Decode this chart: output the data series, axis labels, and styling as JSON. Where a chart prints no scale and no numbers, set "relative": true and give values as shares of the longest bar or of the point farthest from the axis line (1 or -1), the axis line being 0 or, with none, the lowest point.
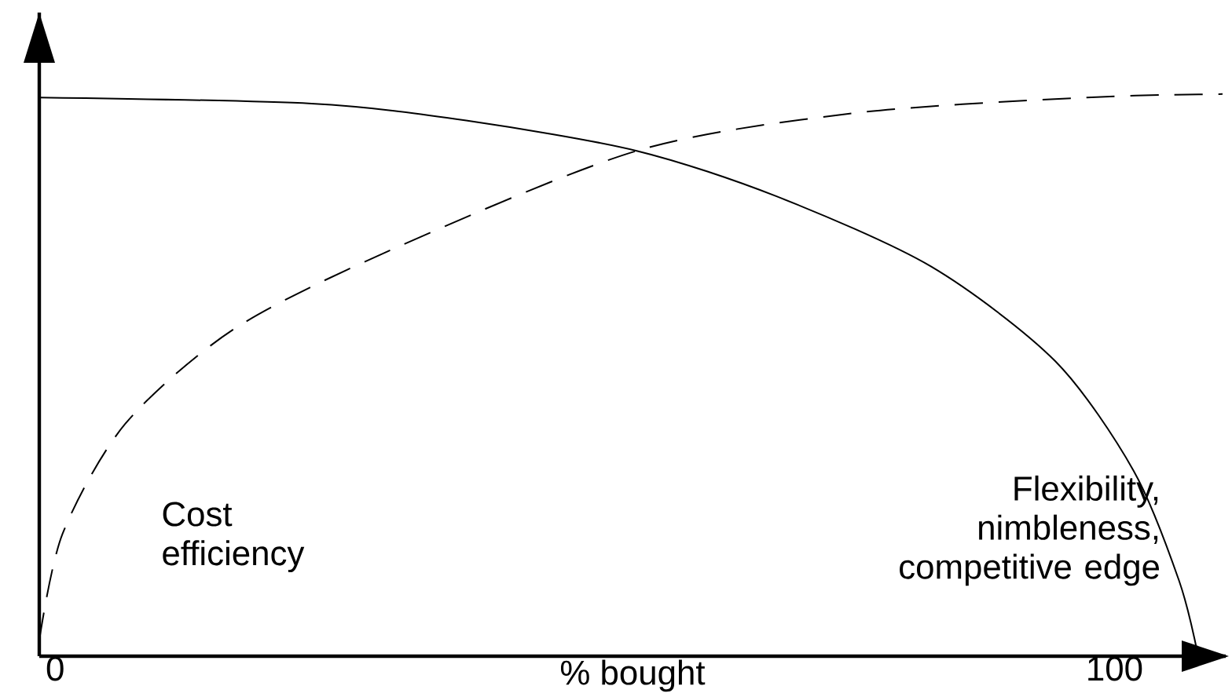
{
  "chart_data": {
    "type": "line",
    "relative": true,
    "xlabel": "% bought",
    "xlim": [
      -1.5,
      110.5
    ],
    "xticks": [
      0,
      100
    ],
    "grid": false,
    "legend": false,
    "marker": "none",
    "series": [
      {
        "name": "Flexibility, nimbleness, competitive edge",
        "color": "#000000",
        "line_style": "solid",
        "x": [
          -1.5,
          24.2,
          38.8,
          54.9,
          68.1,
          82.7,
          94.4,
          101.8,
          106.1,
          107.9
        ],
        "values": [
          0.994,
          0.983,
          0.953,
          0.899,
          0.818,
          0.693,
          0.525,
          0.33,
          0.134,
          0.0
        ]
      },
      {
        "name": "Cost efficiency",
        "color": "#000000",
        "line_style": "dashed",
        "x": [
          -1.5,
          0.7,
          6.6,
          16.8,
          31.5,
          54.9,
          75.4,
          97.4,
          110.2
        ],
        "values": [
          0.028,
          0.218,
          0.413,
          0.581,
          0.721,
          0.899,
          0.966,
          0.994,
          1.0
        ]
      }
    ]
  }
}
